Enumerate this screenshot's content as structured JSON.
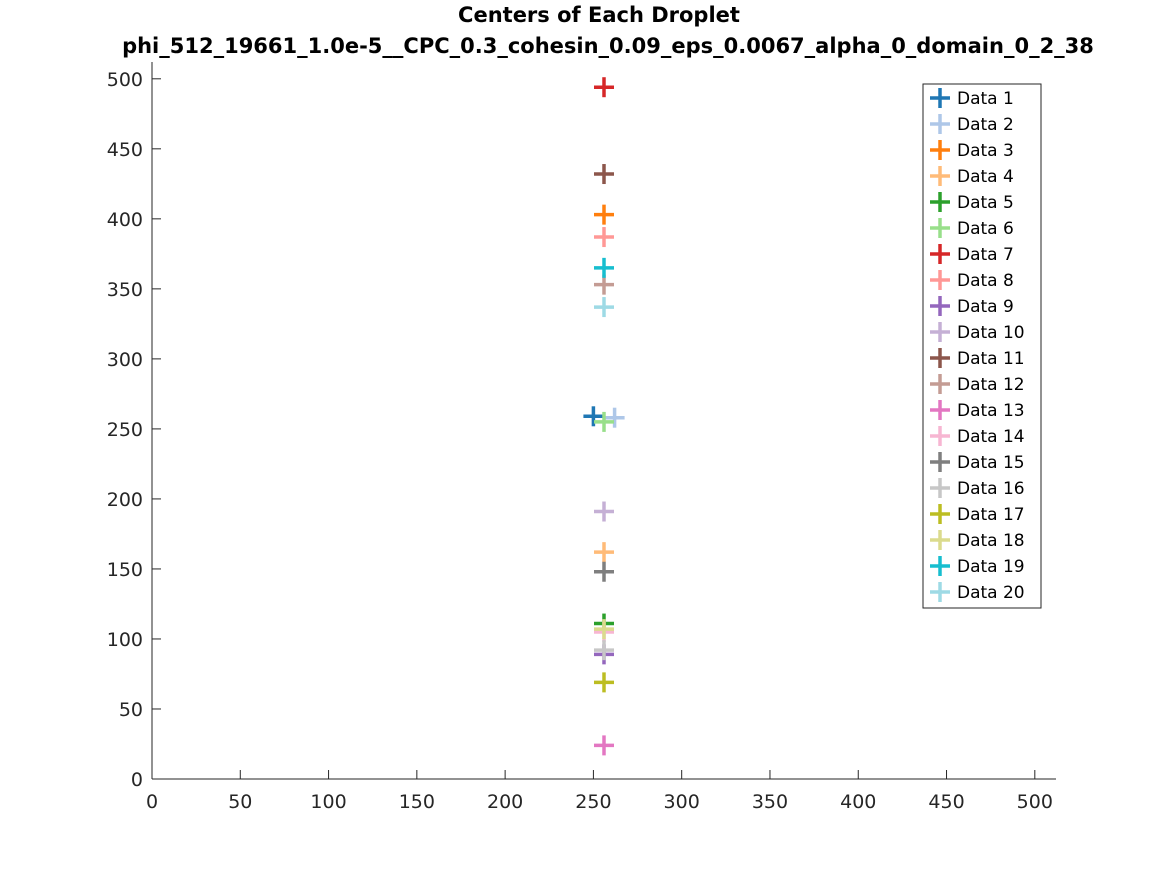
{
  "chart_data": {
    "type": "scatter",
    "title": "Centers of Each Droplet",
    "subtitle": "phi_512_19661_1.0e-5__CPC_0.3_cohesin_0.09_eps_0.0067_alpha_0_domain_0_2_38",
    "xlabel": "",
    "ylabel": "",
    "xlim": [
      0,
      512
    ],
    "ylim": [
      0,
      512
    ],
    "xticks": [
      "0",
      "50",
      "100",
      "150",
      "200",
      "250",
      "300",
      "350",
      "400",
      "450",
      "500"
    ],
    "yticks": [
      "0",
      "50",
      "100",
      "150",
      "200",
      "250",
      "300",
      "350",
      "400",
      "450",
      "500"
    ],
    "grid": false,
    "legend_position": "top-right",
    "marker": "plus",
    "series": [
      {
        "name": "Data 1",
        "color": "#1f77b4",
        "x": [
          250
        ],
        "y": [
          259
        ]
      },
      {
        "name": "Data 2",
        "color": "#aec7e8",
        "x": [
          262
        ],
        "y": [
          258
        ]
      },
      {
        "name": "Data 3",
        "color": "#ff7f0e",
        "x": [
          256
        ],
        "y": [
          403
        ]
      },
      {
        "name": "Data 4",
        "color": "#ffbb78",
        "x": [
          256
        ],
        "y": [
          162
        ]
      },
      {
        "name": "Data 5",
        "color": "#2ca02c",
        "x": [
          256
        ],
        "y": [
          111
        ]
      },
      {
        "name": "Data 6",
        "color": "#98df8a",
        "x": [
          256
        ],
        "y": [
          255
        ]
      },
      {
        "name": "Data 7",
        "color": "#d62728",
        "x": [
          256
        ],
        "y": [
          494
        ]
      },
      {
        "name": "Data 8",
        "color": "#ff9896",
        "x": [
          256
        ],
        "y": [
          387
        ]
      },
      {
        "name": "Data 9",
        "color": "#9467bd",
        "x": [
          256
        ],
        "y": [
          89
        ]
      },
      {
        "name": "Data 10",
        "color": "#c5b0d5",
        "x": [
          256
        ],
        "y": [
          191
        ]
      },
      {
        "name": "Data 11",
        "color": "#8c564b",
        "x": [
          256
        ],
        "y": [
          432
        ]
      },
      {
        "name": "Data 12",
        "color": "#c49c94",
        "x": [
          256
        ],
        "y": [
          353
        ]
      },
      {
        "name": "Data 13",
        "color": "#e377c2",
        "x": [
          256
        ],
        "y": [
          24
        ]
      },
      {
        "name": "Data 14",
        "color": "#f7b6d2",
        "x": [
          256
        ],
        "y": [
          105
        ]
      },
      {
        "name": "Data 15",
        "color": "#7f7f7f",
        "x": [
          256
        ],
        "y": [
          148
        ]
      },
      {
        "name": "Data 16",
        "color": "#c7c7c7",
        "x": [
          256
        ],
        "y": [
          92
        ]
      },
      {
        "name": "Data 17",
        "color": "#bcbd22",
        "x": [
          256
        ],
        "y": [
          69
        ]
      },
      {
        "name": "Data 18",
        "color": "#dbdb8d",
        "x": [
          256
        ],
        "y": [
          107
        ]
      },
      {
        "name": "Data 19",
        "color": "#17becf",
        "x": [
          256
        ],
        "y": [
          365
        ]
      },
      {
        "name": "Data 20",
        "color": "#9edae5",
        "x": [
          256
        ],
        "y": [
          337
        ]
      }
    ]
  }
}
